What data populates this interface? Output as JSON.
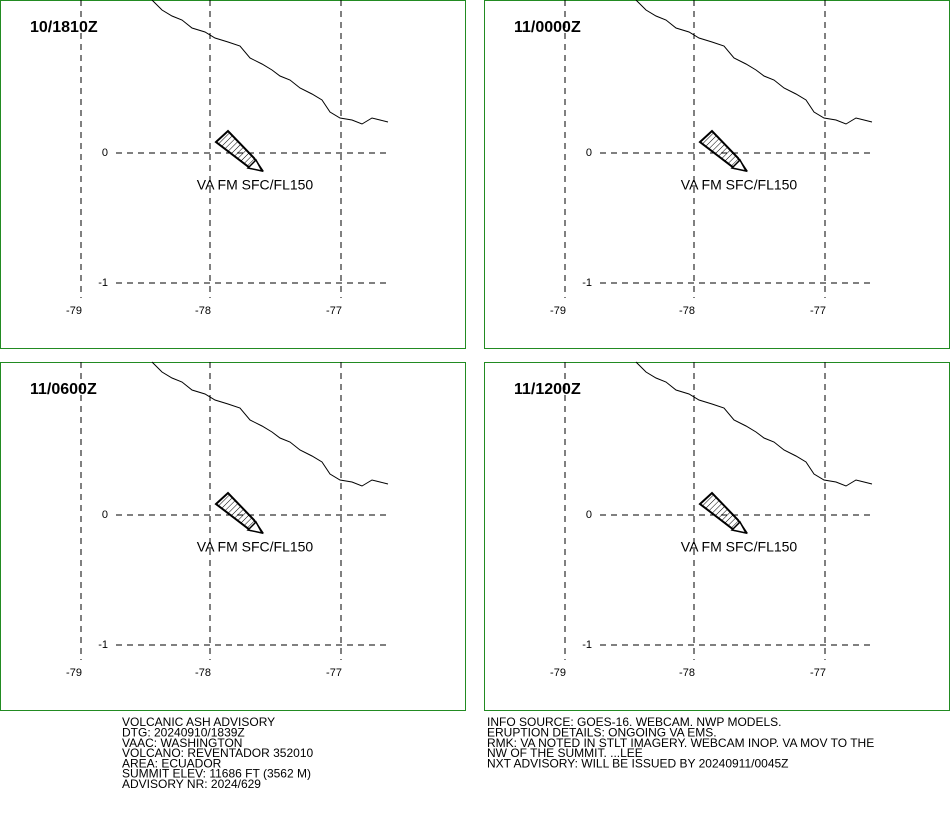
{
  "panels": [
    {
      "time": "10/1810Z",
      "annotation": "VA FM SFC/FL150"
    },
    {
      "time": "11/0000Z",
      "annotation": "VA FM SFC/FL150"
    },
    {
      "time": "11/0600Z",
      "annotation": "VA FM SFC/FL150"
    },
    {
      "time": "11/1200Z",
      "annotation": "VA FM SFC/FL150"
    }
  ],
  "lat_labels": [
    "0",
    "-1"
  ],
  "lon_labels": [
    "-79",
    "-78",
    "-77"
  ],
  "advisory": [
    "VOLCANIC ASH ADVISORY",
    "DTG: 20240910/1839Z",
    "VAAC: WASHINGTON",
    "VOLCANO: REVENTADOR 352010",
    "AREA: ECUADOR",
    "SUMMIT ELEV: 11686 FT (3562 M)",
    "ADVISORY NR: 2024/629"
  ],
  "remarks": [
    "INFO SOURCE: GOES-16. WEBCAM. NWP MODELS.",
    "ERUPTION DETAILS: ONGOING VA EMS.",
    "RMK: VA NOTED IN STLT IMAGERY. WEBCAM INOP. VA MOV TO THE",
    "NW OF THE SUMMIT. ...LEE",
    "NXT ADVISORY: WILL BE ISSUED BY 20240911/0045Z"
  ]
}
